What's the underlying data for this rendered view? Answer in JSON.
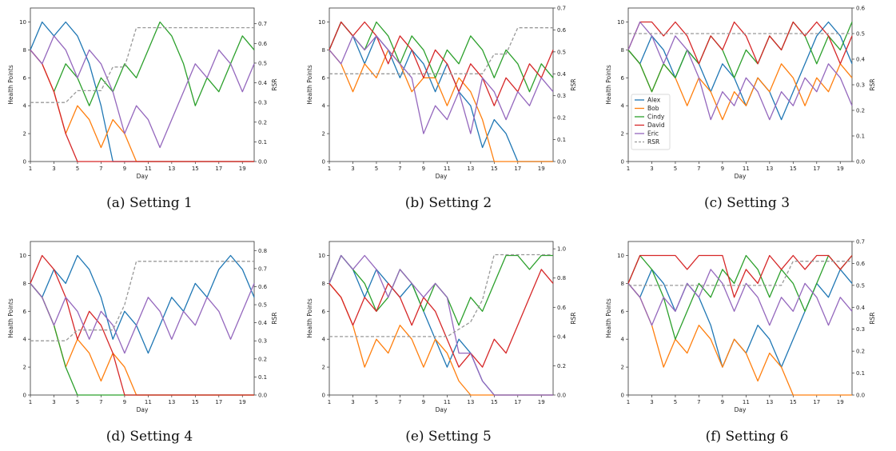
{
  "figure": {
    "days": [
      1,
      2,
      3,
      4,
      5,
      6,
      7,
      8,
      9,
      10,
      11,
      12,
      13,
      14,
      15,
      16,
      17,
      18,
      19,
      20
    ],
    "x_tick_labels": [
      "1",
      "3",
      "5",
      "7",
      "9",
      "11",
      "13",
      "15",
      "17",
      "19"
    ],
    "x_ticks": [
      1,
      3,
      5,
      7,
      9,
      11,
      13,
      15,
      17,
      19
    ],
    "colors": {
      "Alex": "#1f77b4",
      "Bob": "#ff7f0e",
      "Cindy": "#2ca02c",
      "David": "#d62728",
      "Eric": "#9467bd",
      "RSR": "#999999"
    },
    "legend": [
      "Alex",
      "Bob",
      "Cindy",
      "David",
      "Eric",
      "RSR"
    ]
  },
  "chart_data": [
    {
      "type": "line",
      "caption": "(a) Setting 1",
      "xlabel": "Day",
      "ylabel": "Health Points",
      "y2label": "RSR",
      "xlim": [
        1,
        20
      ],
      "ylim": [
        0,
        11
      ],
      "y2lim": [
        0,
        0.78
      ],
      "yticks": [
        0,
        2,
        4,
        6,
        8,
        10
      ],
      "y2ticks": [
        0,
        0.1,
        0.2,
        0.3,
        0.4,
        0.5,
        0.6,
        0.7
      ],
      "y2tick_labels": [
        "0.0",
        "0.1",
        "0.2",
        "0.3",
        "0.4",
        "0.5",
        "0.6",
        "0.7"
      ],
      "show_legend": false,
      "series": [
        {
          "name": "Alex",
          "values": [
            8,
            10,
            9,
            10,
            9,
            7,
            4,
            0,
            0,
            0,
            0,
            0,
            0,
            0,
            0,
            0,
            0,
            0,
            0,
            0
          ]
        },
        {
          "name": "Bob",
          "values": [
            8,
            7,
            5,
            2,
            4,
            3,
            1,
            3,
            2,
            0,
            0,
            0,
            0,
            0,
            0,
            0,
            0,
            0,
            0,
            0
          ]
        },
        {
          "name": "Cindy",
          "values": [
            null,
            null,
            5,
            7,
            6,
            4,
            6,
            5,
            7,
            6,
            8,
            10,
            9,
            7,
            4,
            6,
            5,
            7,
            9,
            8
          ]
        },
        {
          "name": "David",
          "values": [
            8,
            7,
            5,
            2,
            0,
            0,
            0,
            0,
            0,
            0,
            0,
            0,
            0,
            0,
            0,
            0,
            0,
            0,
            0,
            0
          ]
        },
        {
          "name": "Eric",
          "values": [
            8,
            7,
            9,
            8,
            6,
            8,
            7,
            5,
            2,
            4,
            3,
            1,
            3,
            5,
            7,
            6,
            8,
            7,
            5,
            7
          ]
        }
      ],
      "rsr": [
        0.3,
        0.3,
        0.3,
        0.3,
        0.36,
        0.36,
        0.36,
        0.48,
        0.48,
        0.68,
        0.68,
        0.68,
        0.68,
        0.68,
        0.68,
        0.68,
        0.68,
        0.68,
        0.68,
        0.68
      ]
    },
    {
      "type": "line",
      "caption": "(b) Setting 2",
      "xlabel": "Day",
      "ylabel": "Health Points",
      "y2label": "RSR",
      "xlim": [
        1,
        20
      ],
      "ylim": [
        0,
        11
      ],
      "y2lim": [
        0,
        0.7
      ],
      "yticks": [
        0,
        2,
        4,
        6,
        8,
        10
      ],
      "y2ticks": [
        0,
        0.1,
        0.2,
        0.3,
        0.4,
        0.5,
        0.6,
        0.7
      ],
      "y2tick_labels": [
        "0.0",
        "0.1",
        "0.2",
        "0.3",
        "0.4",
        "0.5",
        "0.6",
        "0.7"
      ],
      "show_legend": false,
      "series": [
        {
          "name": "Alex",
          "values": [
            8,
            10,
            9,
            7,
            9,
            8,
            6,
            8,
            7,
            5,
            7,
            5,
            4,
            1,
            3,
            2,
            0,
            0,
            0,
            0
          ]
        },
        {
          "name": "Bob",
          "values": [
            8,
            7,
            5,
            7,
            6,
            8,
            7,
            5,
            6,
            6,
            4,
            6,
            5,
            3,
            0,
            0,
            0,
            0,
            0,
            0
          ]
        },
        {
          "name": "Cindy",
          "values": [
            8,
            10,
            9,
            8,
            10,
            9,
            7,
            9,
            8,
            6,
            8,
            7,
            9,
            8,
            6,
            8,
            7,
            5,
            7,
            6
          ]
        },
        {
          "name": "David",
          "values": [
            8,
            10,
            9,
            10,
            9,
            7,
            9,
            8,
            6,
            8,
            7,
            5,
            7,
            6,
            4,
            6,
            5,
            7,
            6,
            8
          ]
        },
        {
          "name": "Eric",
          "values": [
            8,
            7,
            9,
            8,
            9,
            8,
            7,
            6,
            2,
            4,
            3,
            5,
            2,
            6,
            5,
            3,
            5,
            4,
            6,
            5
          ]
        }
      ],
      "rsr": [
        0.4,
        0.4,
        0.4,
        0.4,
        0.4,
        0.4,
        0.4,
        0.4,
        0.4,
        0.4,
        0.4,
        0.4,
        0.4,
        0.4,
        0.49,
        0.49,
        0.61,
        0.61,
        0.61,
        0.61
      ]
    },
    {
      "type": "line",
      "caption": "(c) Setting 3",
      "xlabel": "Day",
      "ylabel": "Health Points",
      "y2label": "RSR",
      "xlim": [
        1,
        20
      ],
      "ylim": [
        0,
        11
      ],
      "y2lim": [
        0,
        0.6
      ],
      "yticks": [
        0,
        2,
        4,
        6,
        8,
        10
      ],
      "y2ticks": [
        0,
        0.1,
        0.2,
        0.3,
        0.4,
        0.5,
        0.6
      ],
      "y2tick_labels": [
        "0.0",
        "0.1",
        "0.2",
        "0.3",
        "0.4",
        "0.5",
        "0.6"
      ],
      "show_legend": true,
      "series": [
        {
          "name": "Alex",
          "values": [
            8,
            7,
            9,
            8,
            6,
            8,
            7,
            5,
            7,
            6,
            4,
            6,
            5,
            3,
            5,
            7,
            9,
            10,
            9,
            7
          ]
        },
        {
          "name": "Bob",
          "values": [
            8,
            7,
            5,
            7,
            6,
            4,
            6,
            5,
            3,
            5,
            4,
            6,
            5,
            7,
            6,
            4,
            6,
            5,
            7,
            6
          ]
        },
        {
          "name": "Cindy",
          "values": [
            8,
            7,
            5,
            7,
            6,
            8,
            7,
            9,
            8,
            6,
            8,
            7,
            9,
            8,
            10,
            9,
            7,
            9,
            8,
            10
          ]
        },
        {
          "name": "David",
          "values": [
            8,
            10,
            10,
            9,
            10,
            9,
            7,
            9,
            8,
            10,
            9,
            7,
            9,
            8,
            10,
            9,
            10,
            9,
            7,
            9
          ]
        },
        {
          "name": "Eric",
          "values": [
            8,
            10,
            9,
            7,
            9,
            8,
            6,
            3,
            5,
            4,
            6,
            5,
            3,
            5,
            4,
            6,
            5,
            7,
            6,
            4
          ]
        }
      ],
      "rsr": [
        0.5,
        0.5,
        0.5,
        0.5,
        0.5,
        0.5,
        0.5,
        0.5,
        0.5,
        0.5,
        0.5,
        0.5,
        0.5,
        0.5,
        0.5,
        0.5,
        0.5,
        0.5,
        0.5,
        0.5
      ]
    },
    {
      "type": "line",
      "caption": "(d) Setting 4",
      "xlabel": "Day",
      "ylabel": "Health Points",
      "y2label": "RSR",
      "xlim": [
        1,
        20
      ],
      "ylim": [
        0,
        11
      ],
      "y2lim": [
        0,
        0.85
      ],
      "yticks": [
        0,
        2,
        4,
        6,
        8,
        10
      ],
      "y2ticks": [
        0,
        0.1,
        0.2,
        0.3,
        0.4,
        0.5,
        0.6,
        0.7,
        0.8
      ],
      "y2tick_labels": [
        "0.0",
        "0.1",
        "0.2",
        "0.3",
        "0.4",
        "0.5",
        "0.6",
        "0.7",
        "0.8"
      ],
      "show_legend": false,
      "series": [
        {
          "name": "Alex",
          "values": [
            8,
            7,
            9,
            8,
            10,
            9,
            7,
            4,
            6,
            5,
            3,
            5,
            7,
            6,
            8,
            7,
            9,
            10,
            9,
            7
          ]
        },
        {
          "name": "Bob",
          "values": [
            8,
            7,
            5,
            2,
            4,
            3,
            1,
            3,
            2,
            0,
            0,
            0,
            0,
            0,
            0,
            0,
            0,
            0,
            0,
            0
          ]
        },
        {
          "name": "Cindy",
          "values": [
            8,
            7,
            5,
            2,
            0,
            0,
            0,
            0,
            0,
            0,
            0,
            0,
            0,
            0,
            0,
            0,
            0,
            0,
            0,
            0
          ]
        },
        {
          "name": "David",
          "values": [
            8,
            10,
            9,
            7,
            4,
            6,
            5,
            3,
            0,
            0,
            0,
            0,
            0,
            0,
            0,
            0,
            0,
            0,
            0,
            0
          ]
        },
        {
          "name": "Eric",
          "values": [
            8,
            7,
            5,
            7,
            6,
            4,
            6,
            5,
            3,
            5,
            7,
            6,
            4,
            6,
            5,
            7,
            6,
            4,
            6,
            8
          ]
        }
      ],
      "rsr": [
        0.3,
        0.3,
        0.3,
        0.3,
        0.36,
        0.36,
        0.36,
        0.36,
        0.5,
        0.74,
        0.74,
        0.74,
        0.74,
        0.74,
        0.74,
        0.74,
        0.74,
        0.74,
        0.74,
        0.74
      ]
    },
    {
      "type": "line",
      "caption": "(e) Setting 5",
      "xlabel": "Day",
      "ylabel": "Health Points",
      "y2label": "RSR",
      "xlim": [
        1,
        20
      ],
      "ylim": [
        0,
        11
      ],
      "y2lim": [
        0,
        1.05
      ],
      "yticks": [
        0,
        2,
        4,
        6,
        8,
        10
      ],
      "y2ticks": [
        0,
        0.2,
        0.4,
        0.6,
        0.8,
        1.0
      ],
      "y2tick_labels": [
        "0.0",
        "0.2",
        "0.4",
        "0.6",
        "0.8",
        "1.0"
      ],
      "show_legend": false,
      "series": [
        {
          "name": "Alex",
          "values": [
            8,
            10,
            9,
            7,
            9,
            8,
            7,
            8,
            6,
            4,
            2,
            4,
            3,
            1,
            0,
            0,
            0,
            0,
            0,
            0
          ]
        },
        {
          "name": "Bob",
          "values": [
            8,
            7,
            5,
            2,
            4,
            3,
            5,
            4,
            2,
            4,
            3,
            1,
            0,
            0,
            0,
            0,
            0,
            0,
            0,
            0
          ]
        },
        {
          "name": "Cindy",
          "values": [
            8,
            10,
            9,
            8,
            6,
            7,
            9,
            8,
            6,
            8,
            7,
            5,
            7,
            6,
            8,
            10,
            10,
            9,
            10,
            10
          ]
        },
        {
          "name": "David",
          "values": [
            8,
            7,
            5,
            7,
            6,
            8,
            7,
            5,
            7,
            6,
            4,
            2,
            3,
            2,
            4,
            3,
            5,
            7,
            9,
            8
          ]
        },
        {
          "name": "Eric",
          "values": [
            8,
            10,
            9,
            10,
            9,
            7,
            9,
            8,
            7,
            8,
            7,
            3,
            3,
            1,
            0,
            0,
            0,
            0,
            0,
            0
          ]
        }
      ],
      "rsr": [
        0.4,
        0.4,
        0.4,
        0.4,
        0.4,
        0.4,
        0.4,
        0.4,
        0.4,
        0.4,
        0.4,
        0.45,
        0.5,
        0.65,
        0.96,
        0.96,
        0.96,
        0.96,
        0.96,
        0.96
      ]
    },
    {
      "type": "line",
      "caption": "(f) Setting 6",
      "xlabel": "Day",
      "ylabel": "Health Points",
      "y2label": "RSR",
      "xlim": [
        1,
        20
      ],
      "ylim": [
        0,
        11
      ],
      "y2lim": [
        0,
        0.7
      ],
      "yticks": [
        0,
        2,
        4,
        6,
        8,
        10
      ],
      "y2ticks": [
        0,
        0.1,
        0.2,
        0.3,
        0.4,
        0.5,
        0.6,
        0.7
      ],
      "y2tick_labels": [
        "0.0",
        "0.1",
        "0.2",
        "0.3",
        "0.4",
        "0.5",
        "0.6",
        "0.7"
      ],
      "show_legend": false,
      "series": [
        {
          "name": "Alex",
          "values": [
            8,
            7,
            9,
            8,
            6,
            8,
            7,
            5,
            2,
            4,
            3,
            5,
            4,
            2,
            4,
            6,
            8,
            7,
            9,
            8
          ]
        },
        {
          "name": "Bob",
          "values": [
            8,
            7,
            5,
            2,
            4,
            3,
            5,
            4,
            2,
            4,
            3,
            1,
            3,
            2,
            0,
            0,
            0,
            0,
            0,
            0
          ]
        },
        {
          "name": "Cindy",
          "values": [
            8,
            10,
            9,
            7,
            4,
            6,
            8,
            7,
            9,
            8,
            10,
            9,
            7,
            9,
            8,
            6,
            8,
            10,
            9,
            10
          ]
        },
        {
          "name": "David",
          "values": [
            8,
            10,
            10,
            10,
            10,
            9,
            10,
            10,
            10,
            7,
            9,
            8,
            10,
            9,
            10,
            9,
            10,
            10,
            9,
            10
          ]
        },
        {
          "name": "Eric",
          "values": [
            8,
            7,
            5,
            7,
            6,
            8,
            7,
            9,
            8,
            6,
            8,
            7,
            5,
            7,
            6,
            8,
            7,
            5,
            7,
            6
          ]
        }
      ],
      "rsr": [
        0.5,
        0.5,
        0.5,
        0.5,
        0.5,
        0.5,
        0.5,
        0.5,
        0.5,
        0.5,
        0.5,
        0.5,
        0.5,
        0.5,
        0.61,
        0.61,
        0.61,
        0.61,
        0.61,
        0.61
      ]
    }
  ]
}
